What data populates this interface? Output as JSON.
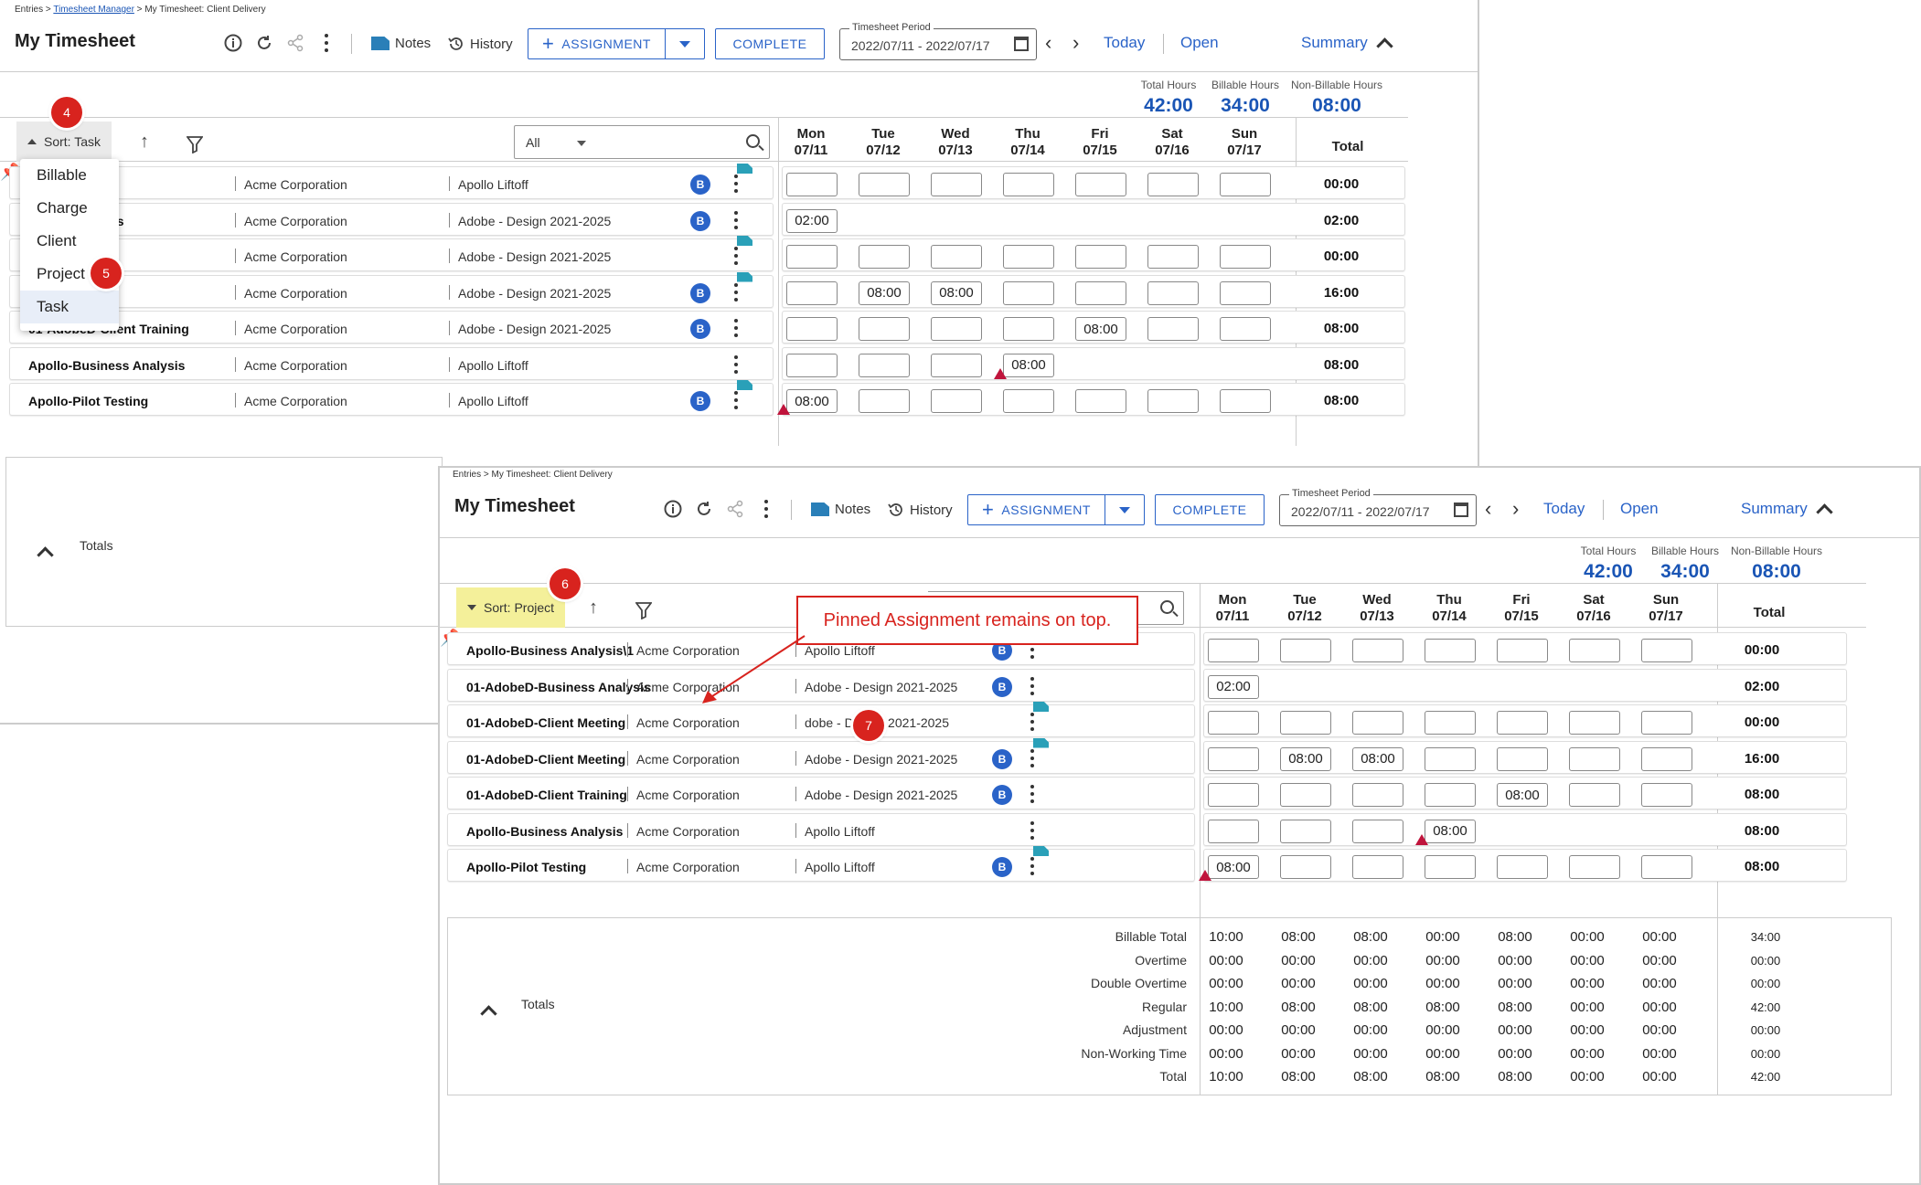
{
  "crumb1": {
    "a": "Entries",
    "b": "Timesheet Manager",
    "c": "My Timesheet: Client Delivery"
  },
  "crumb2": "Entries > My Timesheet: Client Delivery",
  "title": "My Timesheet",
  "toolbar": {
    "notes": "Notes",
    "history": "History",
    "assignment": "ASSIGNMENT",
    "complete": "COMPLETE",
    "period_label": "Timesheet Period",
    "period_value": "2022/07/11 - 2022/07/17",
    "today": "Today",
    "open": "Open",
    "summary": "Summary"
  },
  "hours": {
    "total_label": "Total Hours",
    "total": "42:00",
    "billable_label": "Billable Hours",
    "billable": "34:00",
    "nonbillable_label": "Non-Billable Hours",
    "nonbillable": "08:00"
  },
  "sort1": "Sort: Task",
  "sort2": "Sort: Project",
  "search_value": "All",
  "total_header": "Total",
  "days": [
    {
      "day": "Mon",
      "date": "07/11"
    },
    {
      "day": "Tue",
      "date": "07/12"
    },
    {
      "day": "Wed",
      "date": "07/13"
    },
    {
      "day": "Thu",
      "date": "07/14"
    },
    {
      "day": "Fri",
      "date": "07/15"
    },
    {
      "day": "Sat",
      "date": "07/16"
    },
    {
      "day": "Sun",
      "date": "07/17"
    }
  ],
  "sort_menu": [
    "Billable",
    "Charge",
    "Client",
    "Project",
    "Task"
  ],
  "steps": [
    "4",
    "5",
    "6",
    "7"
  ],
  "rows1": [
    {
      "task": "s Analysis\\1",
      "client": "Acme Corporation",
      "project": "Apollo Liftoff",
      "total": "00:00"
    },
    {
      "task": "siness Analysis",
      "client": "Acme Corporation",
      "project": "Adobe - Design 2021-2025",
      "total": "02:00"
    },
    {
      "task": "nt Meeting",
      "client": "Acme Corporation",
      "project": "Adobe - Design 2021-2025",
      "total": "00:00"
    },
    {
      "task": "ent Meeting",
      "client": "Acme Corporation",
      "project": "Adobe - Design 2021-2025",
      "total": "16:00"
    },
    {
      "task": "01-AdobeD-Client Training",
      "client": "Acme Corporation",
      "project": "Adobe - Design 2021-2025",
      "total": "08:00"
    },
    {
      "task": "Apollo-Business Analysis",
      "client": "Acme Corporation",
      "project": "Apollo Liftoff",
      "total": "08:00"
    },
    {
      "task": "Apollo-Pilot Testing",
      "client": "Acme Corporation",
      "project": "Apollo Liftoff",
      "total": "08:00"
    }
  ],
  "rows2": [
    {
      "task": "Apollo-Business Analysis\\1",
      "client": "Acme Corporation",
      "project": "Apollo Liftoff",
      "total": "00:00"
    },
    {
      "task": "01-AdobeD-Business Analysis",
      "client": "Acme Corporation",
      "project": "Adobe - Design 2021-2025",
      "total": "02:00"
    },
    {
      "task": "01-AdobeD-Client Meeting",
      "client": "Acme Corporation",
      "project": "dobe - Design 2021-2025",
      "total": "00:00"
    },
    {
      "task": "01-AdobeD-Client Meeting",
      "client": "Acme Corporation",
      "project": "Adobe - Design 2021-2025",
      "total": "16:00"
    },
    {
      "task": "01-AdobeD-Client Training",
      "client": "Acme Corporation",
      "project": "Adobe - Design 2021-2025",
      "total": "08:00"
    },
    {
      "task": "Apollo-Business Analysis",
      "client": "Acme Corporation",
      "project": "Apollo Liftoff",
      "total": "08:00"
    },
    {
      "task": "Apollo-Pilot Testing",
      "client": "Acme Corporation",
      "project": "Apollo Liftoff",
      "total": "08:00"
    }
  ],
  "hour_values": {
    "r1_mon": "02:00",
    "r3_tue": "08:00",
    "r3_wed": "08:00",
    "r4_fri": "08:00",
    "r5_thu": "08:00",
    "r6_mon": "08:00"
  },
  "totals_label": "Totals",
  "totals": [
    {
      "label": "Billable Total",
      "vals": [
        "10:00",
        "08:00",
        "08:00",
        "00:00",
        "08:00",
        "00:00",
        "00:00"
      ],
      "sum": "34:00"
    },
    {
      "label": "Overtime",
      "vals": [
        "00:00",
        "00:00",
        "00:00",
        "00:00",
        "00:00",
        "00:00",
        "00:00"
      ],
      "sum": "00:00"
    },
    {
      "label": "Double Overtime",
      "vals": [
        "00:00",
        "00:00",
        "00:00",
        "00:00",
        "00:00",
        "00:00",
        "00:00"
      ],
      "sum": "00:00"
    },
    {
      "label": "Regular",
      "vals": [
        "10:00",
        "08:00",
        "08:00",
        "08:00",
        "08:00",
        "00:00",
        "00:00"
      ],
      "sum": "42:00"
    },
    {
      "label": "Adjustment",
      "vals": [
        "00:00",
        "00:00",
        "00:00",
        "00:00",
        "00:00",
        "00:00",
        "00:00"
      ],
      "sum": "00:00"
    },
    {
      "label": "Non-Working Time",
      "vals": [
        "00:00",
        "00:00",
        "00:00",
        "00:00",
        "00:00",
        "00:00",
        "00:00"
      ],
      "sum": "00:00"
    },
    {
      "label": "Total",
      "vals": [
        "10:00",
        "08:00",
        "08:00",
        "08:00",
        "08:00",
        "00:00",
        "00:00"
      ],
      "sum": "42:00"
    }
  ],
  "callout": "Pinned Assignment remains on top.",
  "colors": {
    "accent": "#2a63c8",
    "step": "#d8231e",
    "flag": "#2aa0b8",
    "warn": "#c0143c"
  },
  "icons": [
    "info-icon",
    "refresh-icon",
    "share-icon",
    "more-icon",
    "notes-icon",
    "history-icon",
    "calendar-icon",
    "pin-icon",
    "filter-icon",
    "search-icon",
    "sort-up-icon"
  ]
}
